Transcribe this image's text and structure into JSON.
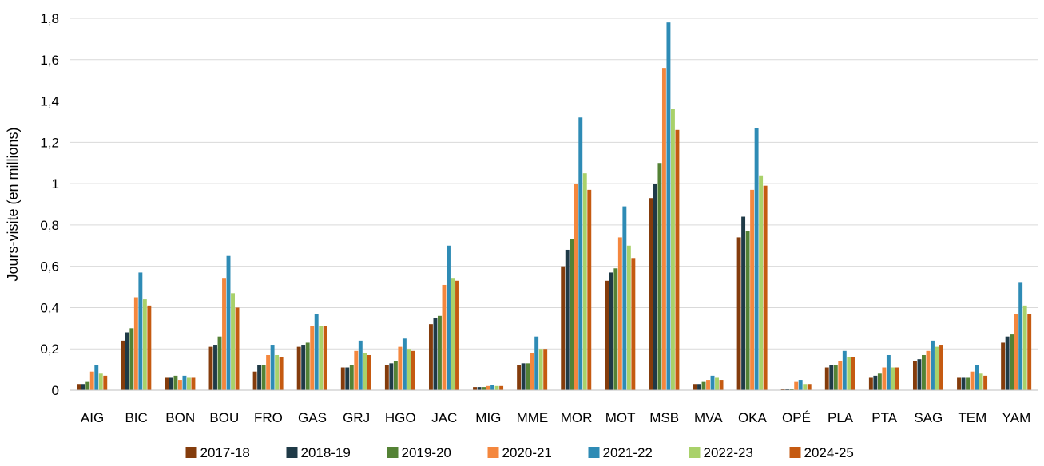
{
  "chart_data": {
    "type": "bar",
    "title": "",
    "xlabel": "",
    "ylabel": "Jours-visite (en millions)",
    "ylim": [
      0,
      1.8
    ],
    "yticks": [
      "0",
      "0,2",
      "0,4",
      "0,6",
      "0,8",
      "1",
      "1,2",
      "1,4",
      "1,6",
      "1,8"
    ],
    "grid": true,
    "legend_position": "bottom",
    "categories": [
      "AIG",
      "BIC",
      "BON",
      "BOU",
      "FRO",
      "GAS",
      "GRJ",
      "HGO",
      "JAC",
      "MIG",
      "MME",
      "MOR",
      "MOT",
      "MSB",
      "MVA",
      "OKA",
      "OPÉ",
      "PLA",
      "PTA",
      "SAG",
      "TEM",
      "YAM"
    ],
    "series": [
      {
        "name": "2017-18",
        "color": "#843c0c",
        "values": [
          0.03,
          0.24,
          0.06,
          0.21,
          0.09,
          0.21,
          0.11,
          0.12,
          0.32,
          0.015,
          0.12,
          0.6,
          0.53,
          0.93,
          0.03,
          0.74,
          0.005,
          0.11,
          0.06,
          0.14,
          0.06,
          0.23
        ]
      },
      {
        "name": "2018-19",
        "color": "#1f3a47",
        "values": [
          0.03,
          0.28,
          0.06,
          0.22,
          0.12,
          0.22,
          0.11,
          0.13,
          0.35,
          0.015,
          0.13,
          0.68,
          0.57,
          1.0,
          0.03,
          0.84,
          0.005,
          0.12,
          0.07,
          0.15,
          0.06,
          0.26
        ]
      },
      {
        "name": "2019-20",
        "color": "#548235",
        "values": [
          0.04,
          0.3,
          0.07,
          0.26,
          0.12,
          0.23,
          0.12,
          0.14,
          0.36,
          0.015,
          0.13,
          0.73,
          0.59,
          1.1,
          0.04,
          0.77,
          0.005,
          0.12,
          0.08,
          0.17,
          0.06,
          0.27
        ]
      },
      {
        "name": "2020-21",
        "color": "#f4873e",
        "values": [
          0.09,
          0.45,
          0.05,
          0.54,
          0.17,
          0.31,
          0.19,
          0.21,
          0.51,
          0.02,
          0.18,
          1.0,
          0.74,
          1.56,
          0.05,
          0.97,
          0.04,
          0.14,
          0.11,
          0.19,
          0.09,
          0.37
        ]
      },
      {
        "name": "2021-22",
        "color": "#2e8bb5",
        "values": [
          0.12,
          0.57,
          0.07,
          0.65,
          0.22,
          0.37,
          0.24,
          0.25,
          0.7,
          0.025,
          0.26,
          1.32,
          0.89,
          1.78,
          0.07,
          1.27,
          0.05,
          0.19,
          0.17,
          0.24,
          0.12,
          0.52
        ]
      },
      {
        "name": "2022-23",
        "color": "#a9d16a",
        "values": [
          0.08,
          0.44,
          0.06,
          0.47,
          0.17,
          0.31,
          0.18,
          0.2,
          0.54,
          0.02,
          0.2,
          1.05,
          0.7,
          1.36,
          0.06,
          1.04,
          0.03,
          0.16,
          0.11,
          0.21,
          0.08,
          0.41
        ]
      },
      {
        "name": "2024-25",
        "color": "#c55a11",
        "values": [
          0.07,
          0.41,
          0.06,
          0.4,
          0.16,
          0.31,
          0.17,
          0.19,
          0.53,
          0.02,
          0.2,
          0.97,
          0.64,
          1.26,
          0.05,
          0.99,
          0.03,
          0.16,
          0.11,
          0.22,
          0.07,
          0.37
        ]
      }
    ]
  }
}
